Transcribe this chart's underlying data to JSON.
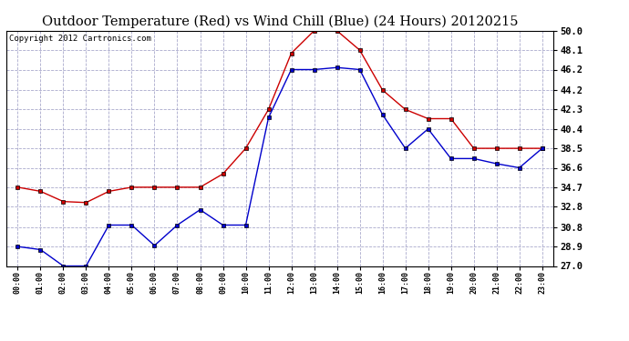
{
  "title": "Outdoor Temperature (Red) vs Wind Chill (Blue) (24 Hours) 20120215",
  "copyright": "Copyright 2012 Cartronics.com",
  "hours": [
    "00:00",
    "01:00",
    "02:00",
    "03:00",
    "04:00",
    "05:00",
    "06:00",
    "07:00",
    "08:00",
    "09:00",
    "10:00",
    "11:00",
    "12:00",
    "13:00",
    "14:00",
    "15:00",
    "16:00",
    "17:00",
    "18:00",
    "19:00",
    "20:00",
    "21:00",
    "22:00",
    "23:00"
  ],
  "red_temp": [
    34.7,
    34.3,
    33.3,
    33.2,
    34.3,
    34.7,
    34.7,
    34.7,
    34.7,
    36.0,
    38.5,
    42.3,
    47.8,
    50.0,
    50.0,
    48.1,
    44.2,
    42.3,
    41.4,
    41.4,
    38.5,
    38.5,
    38.5,
    38.5
  ],
  "blue_wc": [
    28.9,
    28.6,
    27.0,
    27.0,
    31.0,
    31.0,
    29.0,
    31.0,
    32.5,
    31.0,
    31.0,
    41.5,
    46.2,
    46.2,
    46.4,
    46.2,
    41.8,
    38.5,
    40.4,
    37.5,
    37.5,
    37.0,
    36.6,
    38.5
  ],
  "ylim_min": 27.0,
  "ylim_max": 50.0,
  "yticks": [
    27.0,
    28.9,
    30.8,
    32.8,
    34.7,
    36.6,
    38.5,
    40.4,
    42.3,
    44.2,
    46.2,
    48.1,
    50.0
  ],
  "bg_color": "#ffffff",
  "plot_bg": "#ffffff",
  "red_color": "#cc0000",
  "blue_color": "#0000cc",
  "grid_color": "#aaaacc",
  "title_fontsize": 10.5,
  "copyright_fontsize": 6.5
}
